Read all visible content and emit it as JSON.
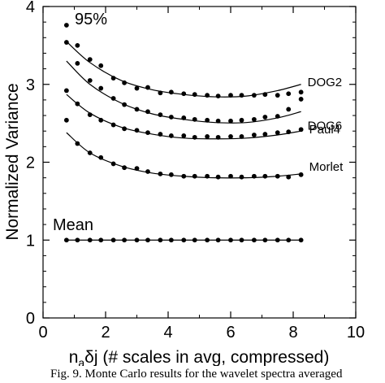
{
  "chart_data": {
    "type": "scatter",
    "xlabel_prefix": "n",
    "xlabel_sub": "a",
    "xlabel_rest": "δj (# scales in avg, compressed)",
    "ylabel": "Normalized Variance",
    "xlim": [
      0,
      10
    ],
    "ylim": [
      0,
      4
    ],
    "x_ticks": [
      0,
      2,
      4,
      6,
      8,
      10
    ],
    "y_ticks": [
      0,
      1,
      2,
      3,
      4
    ],
    "grid": false,
    "annotations": [
      "95%",
      "Mean"
    ],
    "series": [
      {
        "name": "DOG2",
        "points": [
          [
            0.75,
            3.76
          ],
          [
            1.1,
            3.5
          ],
          [
            1.5,
            3.32
          ],
          [
            1.85,
            3.24
          ],
          [
            2.25,
            3.08
          ],
          [
            2.6,
            3.02
          ],
          [
            3.0,
            2.95
          ],
          [
            3.35,
            2.96
          ],
          [
            3.75,
            2.89
          ],
          [
            4.1,
            2.9
          ],
          [
            4.5,
            2.88
          ],
          [
            4.85,
            2.87
          ],
          [
            5.25,
            2.86
          ],
          [
            5.6,
            2.85
          ],
          [
            6.0,
            2.86
          ],
          [
            6.35,
            2.86
          ],
          [
            6.75,
            2.86
          ],
          [
            7.1,
            2.87
          ],
          [
            7.5,
            2.86
          ],
          [
            7.85,
            2.88
          ],
          [
            8.25,
            2.9
          ]
        ],
        "curve": [
          [
            0.75,
            3.55
          ],
          [
            1.5,
            3.28
          ],
          [
            2.5,
            3.05
          ],
          [
            3.5,
            2.93
          ],
          [
            4.5,
            2.87
          ],
          [
            5.5,
            2.84
          ],
          [
            6.5,
            2.85
          ],
          [
            7.5,
            2.92
          ],
          [
            8.25,
            3.0
          ]
        ]
      },
      {
        "name": "DOG6",
        "points": [
          [
            0.75,
            3.54
          ],
          [
            1.1,
            3.27
          ],
          [
            1.5,
            3.05
          ],
          [
            1.85,
            2.95
          ],
          [
            2.25,
            2.82
          ],
          [
            2.6,
            2.74
          ],
          [
            3.0,
            2.68
          ],
          [
            3.35,
            2.65
          ],
          [
            3.75,
            2.61
          ],
          [
            4.1,
            2.58
          ],
          [
            4.5,
            2.57
          ],
          [
            4.85,
            2.55
          ],
          [
            5.25,
            2.54
          ],
          [
            5.6,
            2.53
          ],
          [
            6.0,
            2.53
          ],
          [
            6.35,
            2.54
          ],
          [
            6.75,
            2.55
          ],
          [
            7.1,
            2.58
          ],
          [
            7.5,
            2.59
          ],
          [
            7.85,
            2.68
          ],
          [
            8.25,
            2.81
          ]
        ],
        "curve": [
          [
            0.75,
            3.3
          ],
          [
            1.5,
            3.0
          ],
          [
            2.5,
            2.76
          ],
          [
            3.5,
            2.62
          ],
          [
            4.5,
            2.55
          ],
          [
            5.5,
            2.51
          ],
          [
            6.5,
            2.51
          ],
          [
            7.5,
            2.57
          ],
          [
            8.25,
            2.65
          ]
        ]
      },
      {
        "name": "Paul4",
        "points": [
          [
            0.75,
            2.92
          ],
          [
            1.1,
            2.75
          ],
          [
            1.5,
            2.61
          ],
          [
            1.85,
            2.54
          ],
          [
            2.25,
            2.48
          ],
          [
            2.6,
            2.43
          ],
          [
            3.0,
            2.41
          ],
          [
            3.35,
            2.38
          ],
          [
            3.75,
            2.36
          ],
          [
            4.1,
            2.34
          ],
          [
            4.5,
            2.34
          ],
          [
            4.85,
            2.32
          ],
          [
            5.25,
            2.33
          ],
          [
            5.6,
            2.32
          ],
          [
            6.0,
            2.33
          ],
          [
            6.35,
            2.33
          ],
          [
            6.75,
            2.35
          ],
          [
            7.1,
            2.36
          ],
          [
            7.5,
            2.38
          ],
          [
            7.85,
            2.39
          ],
          [
            8.25,
            2.42
          ]
        ],
        "curve": [
          [
            0.75,
            2.87
          ],
          [
            1.5,
            2.63
          ],
          [
            2.5,
            2.45
          ],
          [
            3.5,
            2.36
          ],
          [
            4.5,
            2.31
          ],
          [
            5.5,
            2.3
          ],
          [
            6.5,
            2.31
          ],
          [
            7.5,
            2.35
          ],
          [
            8.25,
            2.4
          ]
        ]
      },
      {
        "name": "Morlet",
        "points": [
          [
            0.75,
            2.54
          ],
          [
            1.1,
            2.24
          ],
          [
            1.5,
            2.12
          ],
          [
            1.85,
            2.06
          ],
          [
            2.25,
            1.98
          ],
          [
            2.6,
            1.93
          ],
          [
            3.0,
            1.92
          ],
          [
            3.35,
            1.88
          ],
          [
            3.75,
            1.85
          ],
          [
            4.1,
            1.84
          ],
          [
            4.5,
            1.82
          ],
          [
            4.85,
            1.82
          ],
          [
            5.25,
            1.82
          ],
          [
            5.6,
            1.81
          ],
          [
            6.0,
            1.82
          ],
          [
            6.35,
            1.81
          ],
          [
            6.75,
            1.82
          ],
          [
            7.1,
            1.82
          ],
          [
            7.5,
            1.82
          ],
          [
            7.85,
            1.81
          ],
          [
            8.25,
            1.84
          ]
        ],
        "curve": [
          [
            0.75,
            2.38
          ],
          [
            1.5,
            2.12
          ],
          [
            2.5,
            1.95
          ],
          [
            3.5,
            1.86
          ],
          [
            4.5,
            1.82
          ],
          [
            5.5,
            1.8
          ],
          [
            6.5,
            1.8
          ],
          [
            7.5,
            1.82
          ],
          [
            8.25,
            1.85
          ]
        ]
      },
      {
        "name": "",
        "points": [
          [
            0.75,
            1
          ],
          [
            1.1,
            1
          ],
          [
            1.5,
            1
          ],
          [
            1.85,
            1
          ],
          [
            2.25,
            1
          ],
          [
            2.6,
            1
          ],
          [
            3.0,
            1
          ],
          [
            3.35,
            1
          ],
          [
            3.75,
            1
          ],
          [
            4.1,
            1
          ],
          [
            4.5,
            1
          ],
          [
            4.85,
            1
          ],
          [
            5.25,
            1
          ],
          [
            5.6,
            1
          ],
          [
            6.0,
            1
          ],
          [
            6.35,
            1
          ],
          [
            6.75,
            1
          ],
          [
            7.1,
            1
          ],
          [
            7.5,
            1
          ],
          [
            7.85,
            1
          ],
          [
            8.25,
            1
          ]
        ],
        "curve": [
          [
            0.75,
            1
          ],
          [
            8.25,
            1
          ]
        ]
      }
    ]
  },
  "caption": "Fig. 9. Monte Carlo results for the wavelet spectra averaged"
}
